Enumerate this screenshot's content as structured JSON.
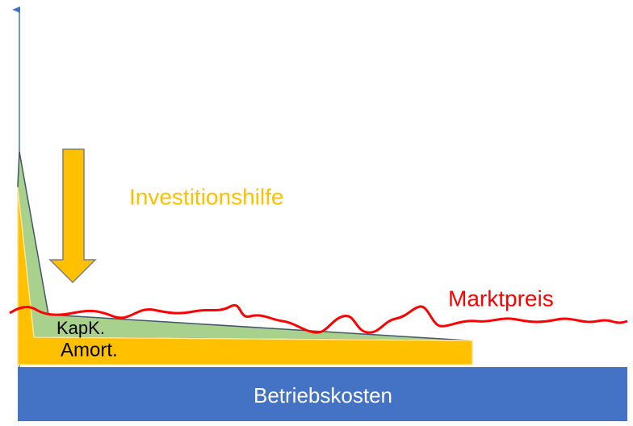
{
  "investment_aid": "Investitionshilfe",
  "market_price": "Marktpreis",
  "capital_cost": "KapK.",
  "amortization": "Amort.",
  "operating_cost": "Betriebskosten"
}
